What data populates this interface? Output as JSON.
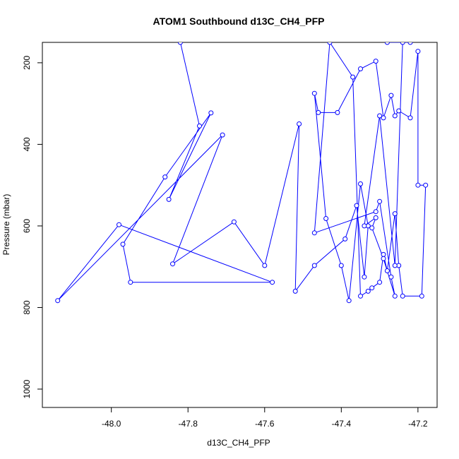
{
  "chart_data": {
    "type": "line",
    "title": "ATOM1 Southbound d13C_CH4_PFP",
    "xlabel": "d13C_CH4_PFP",
    "ylabel": "Pressure (mbar)",
    "xlim": [
      -48.18,
      -47.15
    ],
    "ylim": [
      1045,
      150
    ],
    "y_reversed": true,
    "grid": false,
    "legend": "none",
    "series_color": "#0000ff",
    "x_ticks": [
      -48.0,
      -47.8,
      -47.6,
      -47.4,
      -47.2
    ],
    "x_tick_labels": [
      "-48.0",
      "-47.8",
      "-47.6",
      "-47.4",
      "-47.2"
    ],
    "y_ticks": [
      200,
      400,
      600,
      800,
      1000
    ],
    "y_tick_labels": [
      "200",
      "400",
      "600",
      "800",
      "1000"
    ],
    "points": [
      [
        -47.82,
        150
      ],
      [
        -47.77,
        355
      ],
      [
        -47.85,
        535
      ],
      [
        -47.74,
        323
      ],
      [
        -47.86,
        480
      ],
      [
        -47.97,
        645
      ],
      [
        -47.95,
        738
      ],
      [
        -47.58,
        738
      ],
      [
        -47.98,
        597
      ],
      [
        -48.14,
        783
      ],
      [
        -47.71,
        377
      ],
      [
        -47.84,
        693
      ],
      [
        -47.68,
        590
      ],
      [
        -47.6,
        697
      ],
      [
        -47.51,
        350
      ],
      [
        -47.52,
        760
      ],
      [
        -47.47,
        697
      ],
      [
        -47.39,
        632
      ],
      [
        -47.36,
        550
      ],
      [
        -47.34,
        725
      ],
      [
        -47.33,
        600
      ],
      [
        -47.35,
        497
      ],
      [
        -47.38,
        783
      ],
      [
        -47.4,
        697
      ],
      [
        -47.44,
        582
      ],
      [
        -47.47,
        275
      ],
      [
        -47.46,
        322
      ],
      [
        -47.41,
        322
      ],
      [
        -47.35,
        215
      ],
      [
        -47.31,
        196
      ],
      [
        -47.29,
        335
      ],
      [
        -47.27,
        280
      ],
      [
        -47.26,
        330
      ],
      [
        -47.25,
        318
      ],
      [
        -47.22,
        335
      ],
      [
        -47.2,
        172
      ],
      [
        -47.2,
        500
      ],
      [
        -47.18,
        500
      ],
      [
        -47.19,
        772
      ],
      [
        -47.24,
        772
      ],
      [
        -47.25,
        697
      ],
      [
        -47.26,
        570
      ],
      [
        -47.28,
        710
      ],
      [
        -47.29,
        670
      ],
      [
        -47.3,
        738
      ],
      [
        -47.32,
        752
      ],
      [
        -47.33,
        760
      ],
      [
        -47.35,
        772
      ],
      [
        -47.37,
        235
      ],
      [
        -47.43,
        150
      ],
      [
        -47.47,
        617
      ],
      [
        -47.31,
        565
      ],
      [
        -47.3,
        540
      ],
      [
        -47.27,
        725
      ],
      [
        -47.26,
        772
      ],
      [
        -47.29,
        680
      ],
      [
        -47.32,
        605
      ],
      [
        -47.31,
        580
      ],
      [
        -47.34,
        600
      ],
      [
        -47.3,
        330
      ],
      [
        -47.26,
        697
      ],
      [
        -47.24,
        150
      ],
      [
        -47.28,
        150
      ],
      [
        -47.22,
        150
      ]
    ]
  }
}
